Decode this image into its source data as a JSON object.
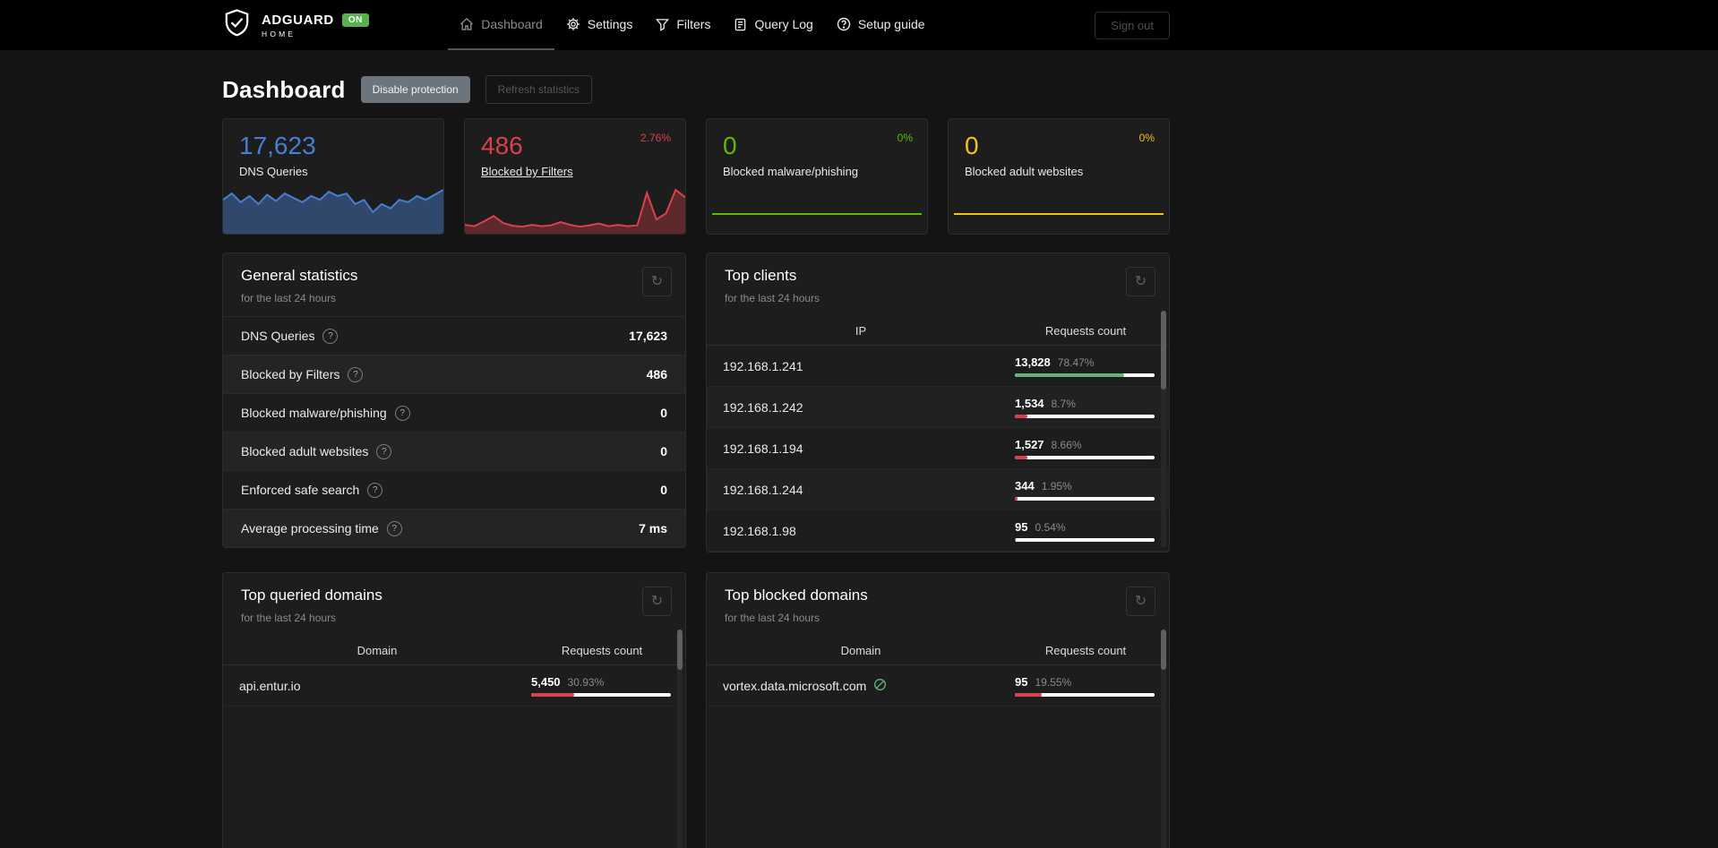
{
  "icons": {
    "help": "?",
    "refresh": "↻"
  },
  "navbar": {
    "brand": {
      "title": "ADGUARD",
      "subtitle": "HOME",
      "badge": "ON"
    },
    "items": [
      {
        "label": "Dashboard",
        "active": true
      },
      {
        "label": "Settings",
        "active": false
      },
      {
        "label": "Filters",
        "active": false
      },
      {
        "label": "Query Log",
        "active": false
      },
      {
        "label": "Setup guide",
        "active": false
      }
    ],
    "sign_out": "Sign out"
  },
  "page": {
    "title": "Dashboard",
    "buttons": {
      "disable_protection": "Disable protection",
      "refresh_statistics": "Refresh statistics"
    }
  },
  "stat_cards": [
    {
      "value": "17,623",
      "label": "DNS Queries",
      "percent": "",
      "color": "#467fcf"
    },
    {
      "value": "486",
      "label": "Blocked by Filters",
      "percent": "2.76%",
      "color": "#d8414b"
    },
    {
      "value": "0",
      "label": "Blocked malware/phishing",
      "percent": "0%",
      "color": "#5eba00"
    },
    {
      "value": "0",
      "label": "Blocked adult websites",
      "percent": "0%",
      "color": "#f1c40f"
    }
  ],
  "chart_data": [
    {
      "type": "area",
      "name": "dns-queries-sparkline",
      "stroke": "#467fcf",
      "fill": "rgba(70,127,207,0.45)",
      "values": [
        52,
        62,
        48,
        58,
        45,
        60,
        50,
        62,
        55,
        48,
        58,
        52,
        65,
        58,
        62,
        45,
        52,
        32,
        45,
        38,
        52,
        48,
        58,
        52,
        60,
        68
      ]
    },
    {
      "type": "area",
      "name": "blocked-by-filters-sparkline",
      "stroke": "#d8414b",
      "fill": "rgba(216,65,75,0.35)",
      "values": [
        16,
        13,
        24,
        36,
        20,
        14,
        12,
        16,
        13,
        15,
        22,
        16,
        12,
        15,
        19,
        13,
        16,
        13,
        15,
        88,
        28,
        42,
        95,
        78
      ]
    },
    {
      "type": "line",
      "name": "blocked-malware-sparkline",
      "stroke": "#5eba00",
      "fill": "transparent",
      "values": [
        0,
        0
      ]
    },
    {
      "type": "line",
      "name": "blocked-adult-sparkline",
      "stroke": "#f1c40f",
      "fill": "transparent",
      "values": [
        0,
        0
      ]
    }
  ],
  "general_statistics": {
    "title": "General statistics",
    "subtitle": "for the last 24 hours",
    "rows": [
      {
        "label": "DNS Queries",
        "value": "17,623"
      },
      {
        "label": "Blocked by Filters",
        "value": "486"
      },
      {
        "label": "Blocked malware/phishing",
        "value": "0"
      },
      {
        "label": "Blocked adult websites",
        "value": "0"
      },
      {
        "label": "Enforced safe search",
        "value": "0"
      },
      {
        "label": "Average processing time",
        "value": "7 ms"
      }
    ]
  },
  "top_clients": {
    "title": "Top clients",
    "subtitle": "for the last 24 hours",
    "columns": {
      "ip": "IP",
      "count": "Requests count"
    },
    "rows": [
      {
        "ip": "192.168.1.241",
        "count": "13,828",
        "percent": "78.47%",
        "bar": 78.47,
        "bar_color": "#67b279"
      },
      {
        "ip": "192.168.1.242",
        "count": "1,534",
        "percent": "8.7%",
        "bar": 8.7,
        "bar_color": "#d8414b"
      },
      {
        "ip": "192.168.1.194",
        "count": "1,527",
        "percent": "8.66%",
        "bar": 8.66,
        "bar_color": "#d8414b"
      },
      {
        "ip": "192.168.1.244",
        "count": "344",
        "percent": "1.95%",
        "bar": 1.95,
        "bar_color": "#d8414b"
      },
      {
        "ip": "192.168.1.98",
        "count": "95",
        "percent": "0.54%",
        "bar": 0.54,
        "bar_color": "#d8414b"
      }
    ]
  },
  "top_queried": {
    "title": "Top queried domains",
    "subtitle": "for the last 24 hours",
    "columns": {
      "domain": "Domain",
      "count": "Requests count"
    },
    "rows": [
      {
        "domain": "api.entur.io",
        "count": "5,450",
        "percent": "30.93%",
        "bar": 30.93,
        "bar_color": "#d8414b"
      }
    ]
  },
  "top_blocked": {
    "title": "Top blocked domains",
    "subtitle": "for the last 24 hours",
    "columns": {
      "domain": "Domain",
      "count": "Requests count"
    },
    "rows": [
      {
        "domain": "vortex.data.microsoft.com",
        "count": "95",
        "percent": "19.55%",
        "bar": 19.55,
        "bar_color": "#d8414b"
      }
    ]
  }
}
